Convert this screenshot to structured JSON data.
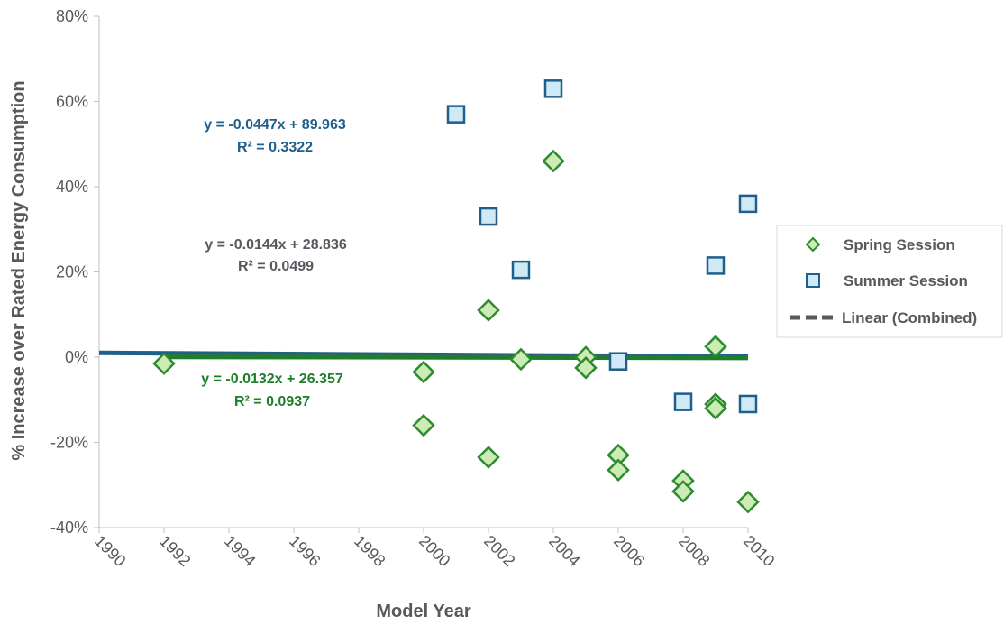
{
  "chart_data": {
    "type": "scatter",
    "xlabel": "Model Year",
    "ylabel": "% Increase over Rated Energy Consumption",
    "xlim": [
      1990,
      2010
    ],
    "ylim": [
      -40,
      80
    ],
    "x_ticks": [
      "1990",
      "1992",
      "1994",
      "1996",
      "1998",
      "2000",
      "2002",
      "2004",
      "2006",
      "2008",
      "2010"
    ],
    "y_ticks": [
      "-40%",
      "-20%",
      "0%",
      "20%",
      "40%",
      "60%",
      "80%"
    ],
    "series": [
      {
        "name": "Spring Session",
        "marker": "diamond",
        "color": "#2E8B2E",
        "fill": "#CDEBB5",
        "points": [
          {
            "x": 1992,
            "y": -1.5
          },
          {
            "x": 2000,
            "y": -3.5
          },
          {
            "x": 2000,
            "y": -16
          },
          {
            "x": 2002,
            "y": 11
          },
          {
            "x": 2002,
            "y": -23.5
          },
          {
            "x": 2003,
            "y": -0.5
          },
          {
            "x": 2004,
            "y": 46
          },
          {
            "x": 2005,
            "y": 0
          },
          {
            "x": 2005,
            "y": -2.5
          },
          {
            "x": 2006,
            "y": -23
          },
          {
            "x": 2006,
            "y": -26.5
          },
          {
            "x": 2008,
            "y": -29
          },
          {
            "x": 2008,
            "y": -31.5
          },
          {
            "x": 2009,
            "y": 2.5
          },
          {
            "x": 2009,
            "y": -11
          },
          {
            "x": 2009,
            "y": -12
          },
          {
            "x": 2010,
            "y": -34
          }
        ]
      },
      {
        "name": "Summer Session",
        "marker": "square",
        "color": "#1F5F8B",
        "fill": "#CFEAF5",
        "points": [
          {
            "x": 2001,
            "y": 57
          },
          {
            "x": 2002,
            "y": 33
          },
          {
            "x": 2003,
            "y": 20.5
          },
          {
            "x": 2004,
            "y": 63
          },
          {
            "x": 2006,
            "y": -1
          },
          {
            "x": 2008,
            "y": -10.5
          },
          {
            "x": 2009,
            "y": 21.5
          },
          {
            "x": 2010,
            "y": 36
          },
          {
            "x": 2010,
            "y": -11
          }
        ]
      }
    ],
    "trendlines": [
      {
        "id": "summer",
        "color": "#1F5F8B",
        "dashed": false,
        "slope": -0.0447,
        "intercept": 89.963,
        "x_range": [
          1990,
          2010
        ],
        "equation": "y = -0.0447x + 89.963",
        "r2": "R² = 0.3322"
      },
      {
        "id": "combined",
        "name": "Linear (Combined)",
        "color": "#555A5F",
        "dashed": true,
        "slope": -0.0144,
        "intercept": 28.836,
        "x_range": [
          1992,
          2010
        ],
        "equation": "y = -0.0144x + 28.836",
        "r2": "R² = 0.0499"
      },
      {
        "id": "spring",
        "color": "#1E7F2A",
        "dashed": false,
        "slope": -0.0132,
        "intercept": 26.357,
        "x_range": [
          1992,
          2010
        ],
        "equation": "y = -0.0132x + 26.357",
        "r2": "R² = 0.0937"
      }
    ],
    "legend_placement": "right",
    "grid": false
  }
}
